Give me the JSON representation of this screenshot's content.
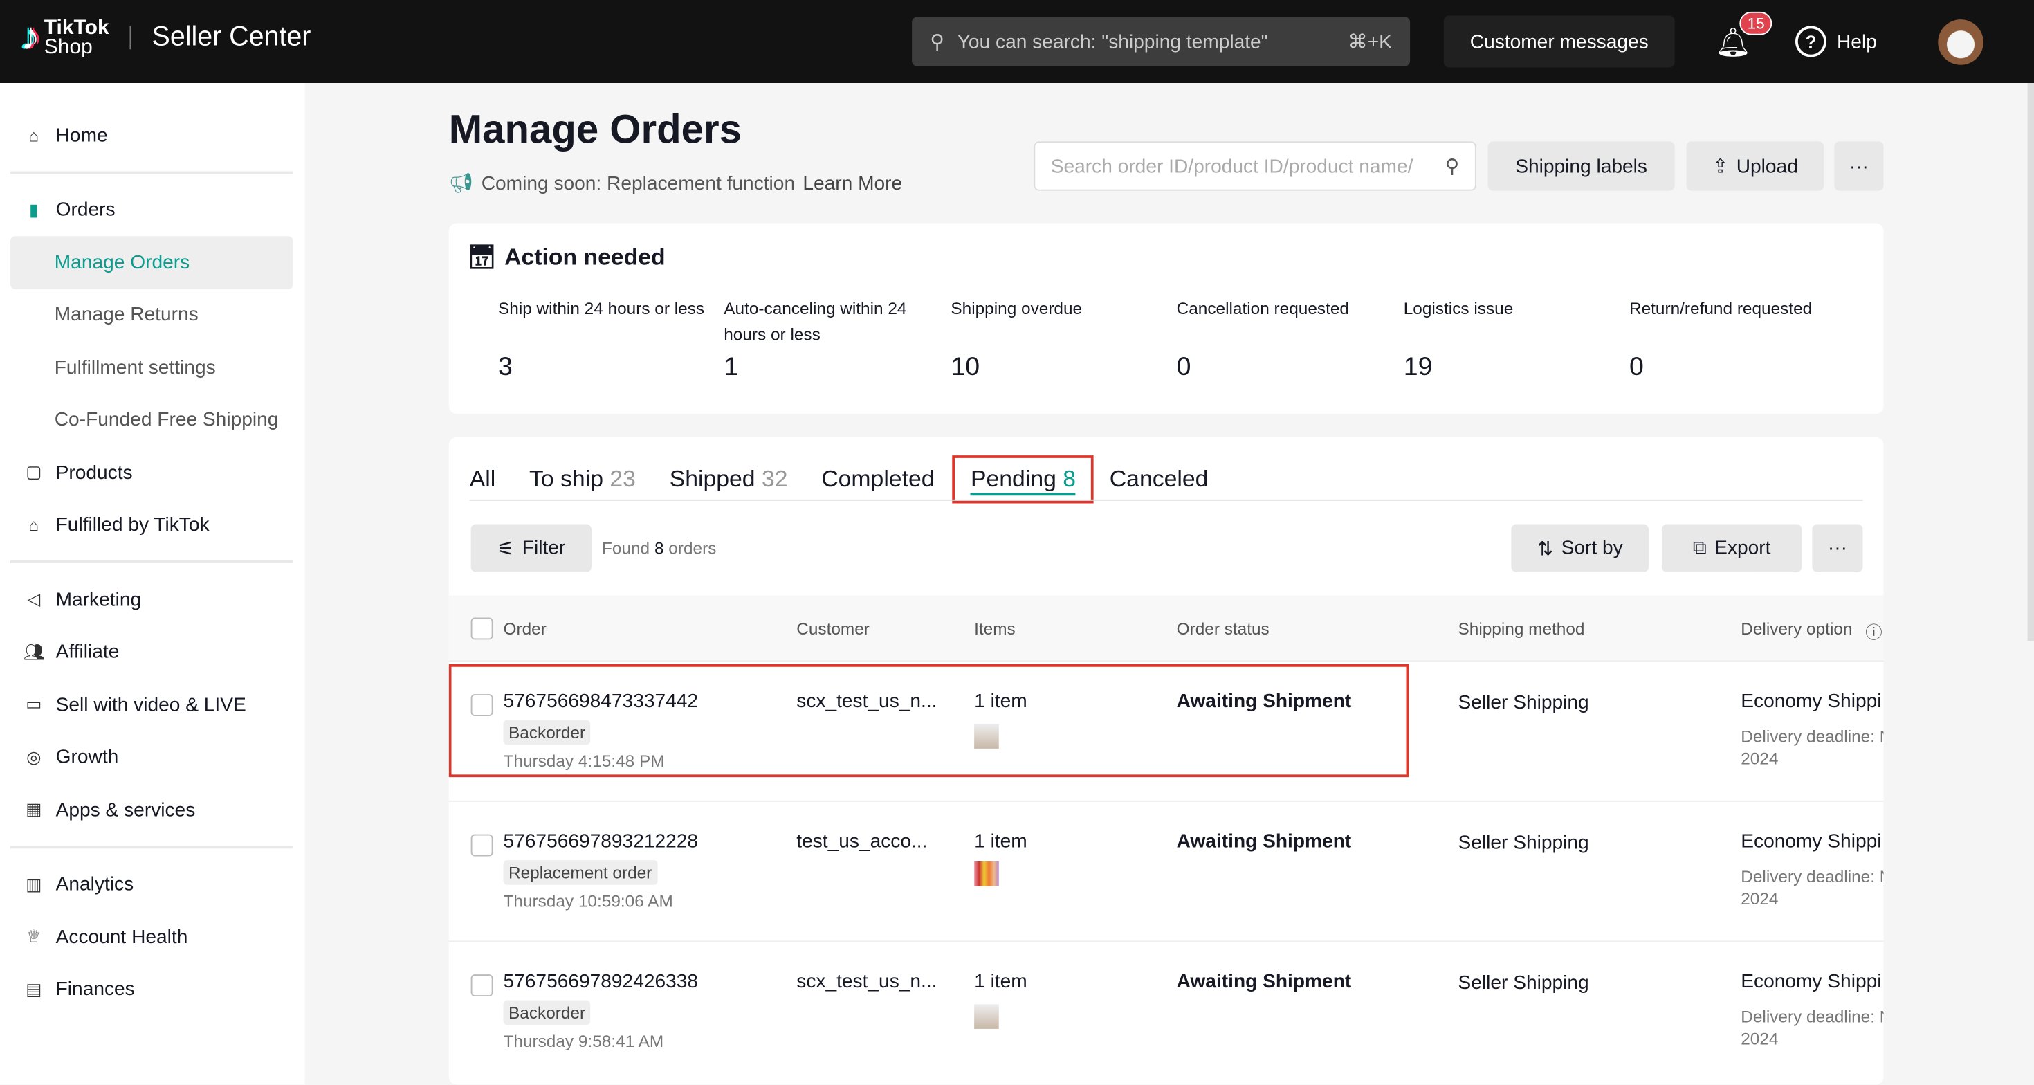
{
  "header": {
    "logo_top": "TikTok",
    "logo_bottom": "Shop",
    "app_title": "Seller Center",
    "search_placeholder": "You can search: \"shipping template\"",
    "search_shortcut": "⌘+K",
    "customer_messages": "Customer messages",
    "notification_count": "15",
    "help": "Help"
  },
  "sidebar": {
    "items": [
      {
        "label": "Home",
        "icon": "home-icon"
      },
      {
        "label": "Orders",
        "icon": "orders-icon"
      },
      {
        "label": "Manage Orders",
        "active": true
      },
      {
        "label": "Manage Returns"
      },
      {
        "label": "Fulfillment settings"
      },
      {
        "label": "Co-Funded Free Shipping"
      },
      {
        "label": "Products",
        "icon": "products-icon"
      },
      {
        "label": "Fulfilled by TikTok",
        "icon": "warehouse-icon"
      },
      {
        "label": "Marketing",
        "icon": "megaphone-icon"
      },
      {
        "label": "Affiliate",
        "icon": "people-icon"
      },
      {
        "label": "Sell with video & LIVE",
        "icon": "video-icon"
      },
      {
        "label": "Growth",
        "icon": "growth-icon"
      },
      {
        "label": "Apps & services",
        "icon": "apps-icon"
      },
      {
        "label": "Analytics",
        "icon": "chart-icon"
      },
      {
        "label": "Account Health",
        "icon": "trophy-icon"
      },
      {
        "label": "Finances",
        "icon": "wallet-icon"
      }
    ]
  },
  "page": {
    "title": "Manage Orders",
    "announcement": "Coming soon: Replacement function",
    "learn_more": "Learn More",
    "order_search_placeholder": "Search order ID/product ID/product name/",
    "shipping_labels": "Shipping labels",
    "upload": "Upload",
    "more": "···"
  },
  "action_needed": {
    "title": "Action needed",
    "metrics": [
      {
        "label": "Ship within 24 hours or less",
        "value": "3"
      },
      {
        "label": "Auto-canceling within 24 hours or less",
        "value": "1"
      },
      {
        "label": "Shipping overdue",
        "value": "10"
      },
      {
        "label": "Cancellation requested",
        "value": "0"
      },
      {
        "label": "Logistics issue",
        "value": "19"
      },
      {
        "label": "Return/refund requested",
        "value": "0"
      }
    ]
  },
  "tabs": [
    {
      "label": "All",
      "count": ""
    },
    {
      "label": "To ship",
      "count": "23"
    },
    {
      "label": "Shipped",
      "count": "32"
    },
    {
      "label": "Completed",
      "count": ""
    },
    {
      "label": "Pending",
      "count": "8",
      "selected": true
    },
    {
      "label": "Canceled",
      "count": ""
    }
  ],
  "toolbar": {
    "filter": "Filter",
    "found_prefix": "Found",
    "found_count": "8",
    "found_suffix": "orders",
    "sort_by": "Sort by",
    "export": "Export",
    "more": "···"
  },
  "table": {
    "columns": [
      "Order",
      "Customer",
      "Items",
      "Order status",
      "Shipping method",
      "Delivery option"
    ],
    "rows": [
      {
        "order_id": "576756698473337442",
        "tag": "Backorder",
        "time": "Thursday 4:15:48 PM",
        "customer": "scx_test_us_n...",
        "items": "1 item",
        "status": "Awaiting Shipment",
        "shipping": "Seller Shipping",
        "delivery": "Economy Shippi",
        "deadline": "Delivery deadline: N",
        "year": "2024"
      },
      {
        "order_id": "576756697893212228",
        "tag": "Replacement order",
        "time": "Thursday 10:59:06 AM",
        "customer": "test_us_acco...",
        "items": "1 item",
        "status": "Awaiting Shipment",
        "shipping": "Seller Shipping",
        "delivery": "Economy Shippi",
        "deadline": "Delivery deadline: N",
        "year": "2024"
      },
      {
        "order_id": "576756697892426338",
        "tag": "Backorder",
        "time": "Thursday 9:58:41 AM",
        "customer": "scx_test_us_n...",
        "items": "1 item",
        "status": "Awaiting Shipment",
        "shipping": "Seller Shipping",
        "delivery": "Economy Shippi",
        "deadline": "Delivery deadline: N",
        "year": "2024"
      }
    ]
  },
  "colors": {
    "accent": "#0a9c8d",
    "highlight": "#e0352b",
    "header_bg": "#121212"
  }
}
